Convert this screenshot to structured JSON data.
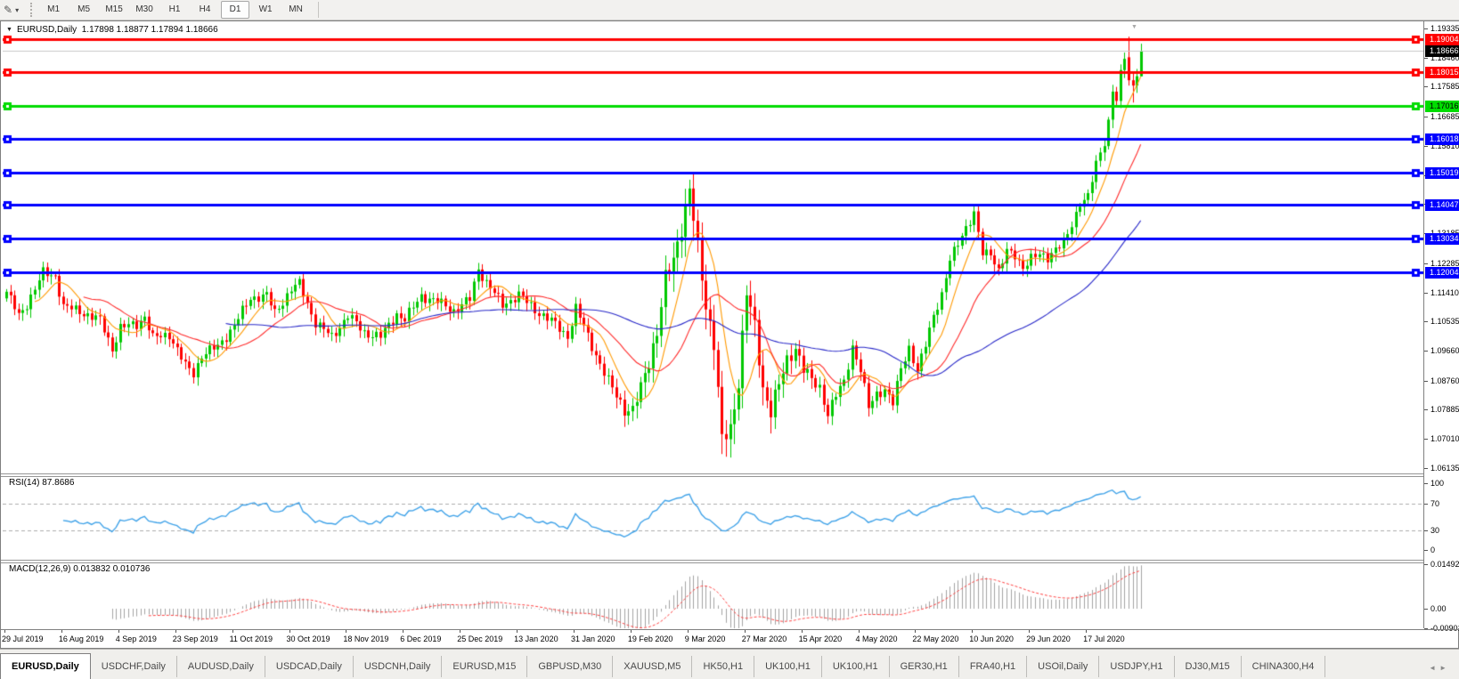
{
  "toolbar": {
    "drawing_tool_icon": "✎",
    "dropdown_icon": "▾",
    "timeframes": [
      {
        "label": "M1",
        "active": false
      },
      {
        "label": "M5",
        "active": false
      },
      {
        "label": "M15",
        "active": false
      },
      {
        "label": "M30",
        "active": false
      },
      {
        "label": "H1",
        "active": false
      },
      {
        "label": "H4",
        "active": false
      },
      {
        "label": "D1",
        "active": true
      },
      {
        "label": "W1",
        "active": false
      },
      {
        "label": "MN",
        "active": false
      }
    ]
  },
  "window": {
    "menu_icon": "▼",
    "title_symbol": "EURUSD,Daily",
    "title_ohlc": "1.17898 1.18877 1.17894 1.18666",
    "shift_marker_icon": "▼"
  },
  "price_axis": {
    "ticks": [
      "1.19335",
      "1.18460",
      "1.17585",
      "1.16685",
      "1.15810",
      "1.14935",
      "1.14060",
      "1.13185",
      "1.12285",
      "1.11410",
      "1.10535",
      "1.09660",
      "1.08760",
      "1.07885",
      "1.07010",
      "1.06135"
    ],
    "current_price": "1.18666",
    "level_labels": [
      {
        "text": "1.19004",
        "bg": "#FF0000",
        "fg": "#FFFFFF"
      },
      {
        "text": "1.18015",
        "bg": "#FF0000",
        "fg": "#FFFFFF"
      },
      {
        "text": "1.17016",
        "bg": "#00DC00",
        "fg": "#000000"
      },
      {
        "text": "1.16018",
        "bg": "#0000FF",
        "fg": "#FFFFFF"
      },
      {
        "text": "1.15019",
        "bg": "#0000FF",
        "fg": "#FFFFFF"
      },
      {
        "text": "1.14047",
        "bg": "#0000FF",
        "fg": "#FFFFFF"
      },
      {
        "text": "1.13034",
        "bg": "#0000FF",
        "fg": "#FFFFFF"
      },
      {
        "text": "1.12004",
        "bg": "#0000FF",
        "fg": "#FFFFFF"
      }
    ]
  },
  "date_axis": [
    "29 Jul 2019",
    "16 Aug 2019",
    "4 Sep 2019",
    "23 Sep 2019",
    "11 Oct 2019",
    "30 Oct 2019",
    "18 Nov 2019",
    "6 Dec 2019",
    "25 Dec 2019",
    "13 Jan 2020",
    "31 Jan 2020",
    "19 Feb 2020",
    "9 Mar 2020",
    "27 Mar 2020",
    "15 Apr 2020",
    "4 May 2020",
    "22 May 2020",
    "10 Jun 2020",
    "29 Jun 2020",
    "17 Jul 2020"
  ],
  "rsi_pane": {
    "label": "RSI(14) 87.8686",
    "ticks": [
      "100",
      "70",
      "30",
      "0"
    ]
  },
  "macd_pane": {
    "label": "MACD(12,26,9) 0.013832 0.010736",
    "ticks": [
      "0.014921",
      "0.00",
      "-0.00901"
    ]
  },
  "tab_bar": {
    "scroll_left_icon": "◄",
    "scroll_right_icon": "►",
    "tabs": [
      {
        "label": "EURUSD,Daily",
        "active": true
      },
      {
        "label": "USDCHF,Daily",
        "active": false
      },
      {
        "label": "AUDUSD,Daily",
        "active": false
      },
      {
        "label": "USDCAD,Daily",
        "active": false
      },
      {
        "label": "USDCNH,Daily",
        "active": false
      },
      {
        "label": "EURUSD,M15",
        "active": false
      },
      {
        "label": "GBPUSD,M30",
        "active": false
      },
      {
        "label": "XAUUSD,M5",
        "active": false
      },
      {
        "label": "HK50,H1",
        "active": false
      },
      {
        "label": "UK100,H1",
        "active": false
      },
      {
        "label": "UK100,H1",
        "active": false
      },
      {
        "label": "GER30,H1",
        "active": false
      },
      {
        "label": "FRA40,H1",
        "active": false
      },
      {
        "label": "USOil,Daily",
        "active": false
      },
      {
        "label": "USDJPY,H1",
        "active": false
      },
      {
        "label": "DJ30,M15",
        "active": false
      },
      {
        "label": "CHINA300,H4",
        "active": false
      }
    ]
  },
  "chart_data": {
    "type": "candlestick",
    "symbol": "EURUSD",
    "period": "Daily",
    "bars": 280,
    "current_ohlc": {
      "open": 1.17898,
      "high": 1.18877,
      "low": 1.17894,
      "close": 1.18666
    },
    "axis": {
      "p_top": 1.19415,
      "p_bottom": 1.06001
    },
    "h_lines": [
      {
        "value": 1.19004,
        "color": "#FF0000"
      },
      {
        "value": 1.18015,
        "color": "#FF0000"
      },
      {
        "value": 1.17016,
        "color": "#00DC00"
      },
      {
        "value": 1.16018,
        "color": "#0000FF"
      },
      {
        "value": 1.15019,
        "color": "#0000FF"
      },
      {
        "value": 1.14047,
        "color": "#0000FF"
      },
      {
        "value": 1.13034,
        "color": "#0000FF"
      },
      {
        "value": 1.12004,
        "color": "#0000FF"
      }
    ],
    "bid_line": {
      "value": 1.18666,
      "color": "#C8C8C8"
    },
    "candle_colors": {
      "up": "#00C800",
      "down": "#FF0000"
    },
    "price_keyframes": [
      [
        0,
        1.1143
      ],
      [
        3,
        1.107
      ],
      [
        5,
        1.1107
      ],
      [
        9,
        1.1199
      ],
      [
        12,
        1.1191
      ],
      [
        14,
        1.1098
      ],
      [
        18,
        1.1085
      ],
      [
        23,
        1.1057
      ],
      [
        26,
        1.0972
      ],
      [
        28,
        1.1035
      ],
      [
        32,
        1.1045
      ],
      [
        34,
        1.107
      ],
      [
        36,
        1.1003
      ],
      [
        40,
        1.1016
      ],
      [
        44,
        1.092
      ],
      [
        46,
        1.0899
      ],
      [
        48,
        1.0952
      ],
      [
        52,
        1.0979
      ],
      [
        56,
        1.1042
      ],
      [
        60,
        1.1125
      ],
      [
        64,
        1.1131
      ],
      [
        66,
        1.108
      ],
      [
        70,
        1.115
      ],
      [
        72,
        1.1166
      ],
      [
        76,
        1.105
      ],
      [
        80,
        1.1007
      ],
      [
        84,
        1.1072
      ],
      [
        88,
        1.1021
      ],
      [
        92,
        1.1008
      ],
      [
        96,
        1.1077
      ],
      [
        98,
        1.106
      ],
      [
        102,
        1.1131
      ],
      [
        106,
        1.1113
      ],
      [
        110,
        1.1087
      ],
      [
        114,
        1.112
      ],
      [
        116,
        1.1212
      ],
      [
        118,
        1.1172
      ],
      [
        122,
        1.1103
      ],
      [
        126,
        1.1134
      ],
      [
        130,
        1.1089
      ],
      [
        134,
        1.1055
      ],
      [
        138,
        1.101
      ],
      [
        140,
        1.1093
      ],
      [
        144,
        1.0982
      ],
      [
        148,
        1.0872
      ],
      [
        152,
        1.0792
      ],
      [
        154,
        1.0785
      ],
      [
        156,
        1.0851
      ],
      [
        160,
        1.1026
      ],
      [
        162,
        1.1174
      ],
      [
        164,
        1.124
      ],
      [
        168,
        1.1447
      ],
      [
        170,
        1.127
      ],
      [
        172,
        1.1106
      ],
      [
        174,
        1.0995
      ],
      [
        176,
        1.0692
      ],
      [
        178,
        1.0727
      ],
      [
        180,
        1.0881
      ],
      [
        182,
        1.1141
      ],
      [
        184,
        1.103
      ],
      [
        186,
        1.0856
      ],
      [
        188,
        1.0791
      ],
      [
        190,
        1.0859
      ],
      [
        192,
        1.0935
      ],
      [
        194,
        1.098
      ],
      [
        196,
        1.091
      ],
      [
        198,
        1.0875
      ],
      [
        200,
        1.0858
      ],
      [
        202,
        1.0777
      ],
      [
        204,
        1.083
      ],
      [
        206,
        1.0873
      ],
      [
        208,
        1.098
      ],
      [
        210,
        1.0906
      ],
      [
        212,
        1.0795
      ],
      [
        214,
        1.084
      ],
      [
        216,
        1.0848
      ],
      [
        218,
        1.0805
      ],
      [
        220,
        1.0916
      ],
      [
        222,
        1.0977
      ],
      [
        224,
        1.0901
      ],
      [
        226,
        1.0983
      ],
      [
        228,
        1.1077
      ],
      [
        230,
        1.1134
      ],
      [
        232,
        1.1234
      ],
      [
        234,
        1.1291
      ],
      [
        236,
        1.134
      ],
      [
        238,
        1.1373
      ],
      [
        240,
        1.1256
      ],
      [
        242,
        1.1264
      ],
      [
        244,
        1.1206
      ],
      [
        246,
        1.1261
      ],
      [
        248,
        1.1252
      ],
      [
        250,
        1.1219
      ],
      [
        252,
        1.1242
      ],
      [
        254,
        1.1252
      ],
      [
        256,
        1.1248
      ],
      [
        258,
        1.1274
      ],
      [
        260,
        1.1284
      ],
      [
        262,
        1.1344
      ],
      [
        264,
        1.1413
      ],
      [
        266,
        1.1427
      ],
      [
        268,
        1.1525
      ],
      [
        270,
        1.1596
      ],
      [
        271,
        1.1656
      ],
      [
        272,
        1.175
      ],
      [
        273,
        1.1716
      ],
      [
        274,
        1.1791
      ],
      [
        275,
        1.1847
      ]
    ],
    "last_candles": [
      {
        "o": 1.1847,
        "h": 1.1909,
        "l": 1.1762,
        "c": 1.1778
      },
      {
        "o": 1.1778,
        "h": 1.18,
        "l": 1.1711,
        "c": 1.1762
      },
      {
        "o": 1.1762,
        "h": 1.1812,
        "l": 1.174,
        "c": 1.179
      },
      {
        "o": 1.17898,
        "h": 1.18877,
        "l": 1.17894,
        "c": 1.18666
      }
    ],
    "moving_averages": [
      {
        "period": 8,
        "color": "#FF9900"
      },
      {
        "period": 20,
        "color": "#FF2A2A"
      },
      {
        "period": 55,
        "color": "#2828C8"
      }
    ],
    "indicators": [
      {
        "name": "RSI",
        "period": 14,
        "last": 87.8686,
        "levels": [
          70,
          30
        ],
        "range": [
          0,
          100
        ],
        "color": "#3FA2E8",
        "level_color": "#ADADAD"
      },
      {
        "name": "MACD",
        "fast": 12,
        "slow": 26,
        "signal_period": 9,
        "last_main": 0.013832,
        "last_signal": 0.010736,
        "axis_max": 0.014921,
        "axis_min": -0.00901,
        "hist_color": "#A3A3A3",
        "signal_color": "#FF4040"
      }
    ]
  }
}
